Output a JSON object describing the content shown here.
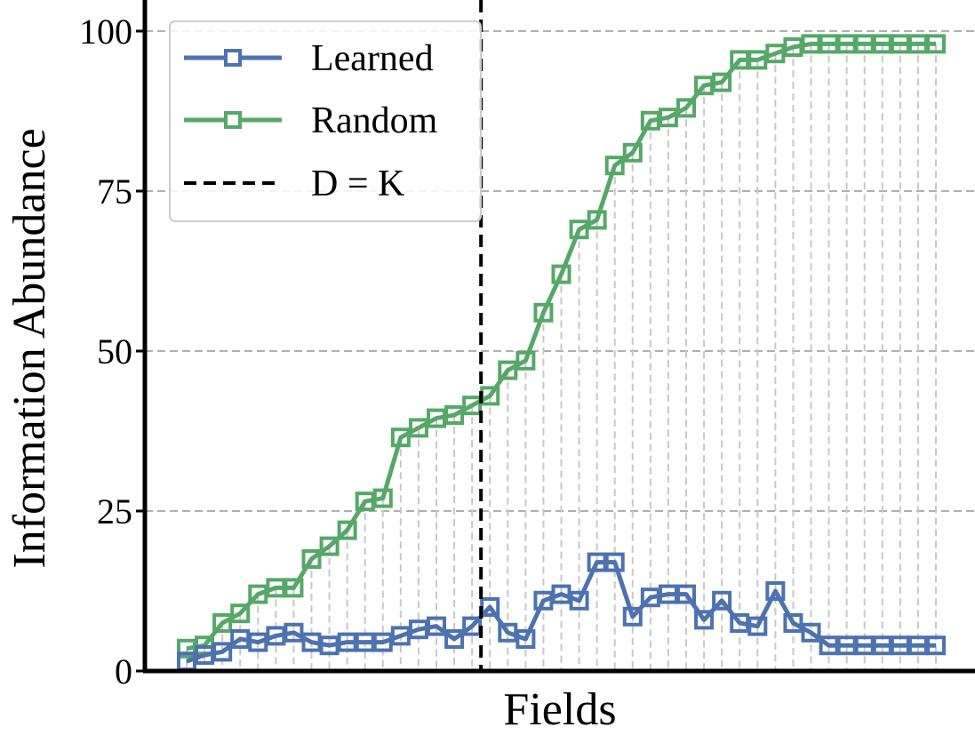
{
  "chart_data": {
    "type": "line",
    "title": "",
    "xlabel": "Fields",
    "ylabel": "Information Abundance",
    "ylim": [
      0,
      100
    ],
    "yticks": [
      0,
      25,
      50,
      75,
      100
    ],
    "grid": "horizontal dashed",
    "legend_position": "top-left",
    "x": [
      1,
      2,
      3,
      4,
      5,
      6,
      7,
      8,
      9,
      10,
      11,
      12,
      13,
      14,
      15,
      16,
      17,
      18,
      19,
      20,
      21,
      22,
      23,
      24,
      25,
      26,
      27,
      28,
      29,
      30,
      31,
      32,
      33,
      34,
      35,
      36,
      37,
      38,
      39,
      40,
      41,
      42,
      43
    ],
    "series": [
      {
        "name": "Learned",
        "color": "#4c72b0",
        "values": [
          1.5,
          2.5,
          3,
          5,
          4.5,
          5.5,
          6,
          4.5,
          4,
          4.5,
          4.5,
          4.5,
          5.5,
          6.5,
          7,
          5,
          7,
          10,
          6,
          5,
          11,
          12,
          11,
          17,
          17,
          8.5,
          11.5,
          12,
          12,
          8,
          11,
          7.5,
          7,
          12.5,
          7.5,
          6,
          4,
          4,
          4,
          4,
          4,
          4,
          4
        ]
      },
      {
        "name": "Random",
        "color": "#55a868",
        "values": [
          3.5,
          4,
          7.5,
          9,
          12,
          13,
          13,
          17.5,
          19.5,
          22,
          26.5,
          27,
          36.5,
          38,
          39.5,
          40,
          41.5,
          43,
          47,
          48.5,
          56,
          62,
          69,
          70.5,
          79,
          81,
          86,
          86.5,
          88,
          91.5,
          92,
          95.5,
          95.5,
          96.5,
          97.5,
          98,
          98,
          98,
          98,
          98,
          98,
          98,
          98
        ]
      }
    ],
    "reference_line": {
      "name": "D = K",
      "x": 17.5,
      "style": "dashed",
      "color": "#000000"
    },
    "drop_lines": true
  }
}
